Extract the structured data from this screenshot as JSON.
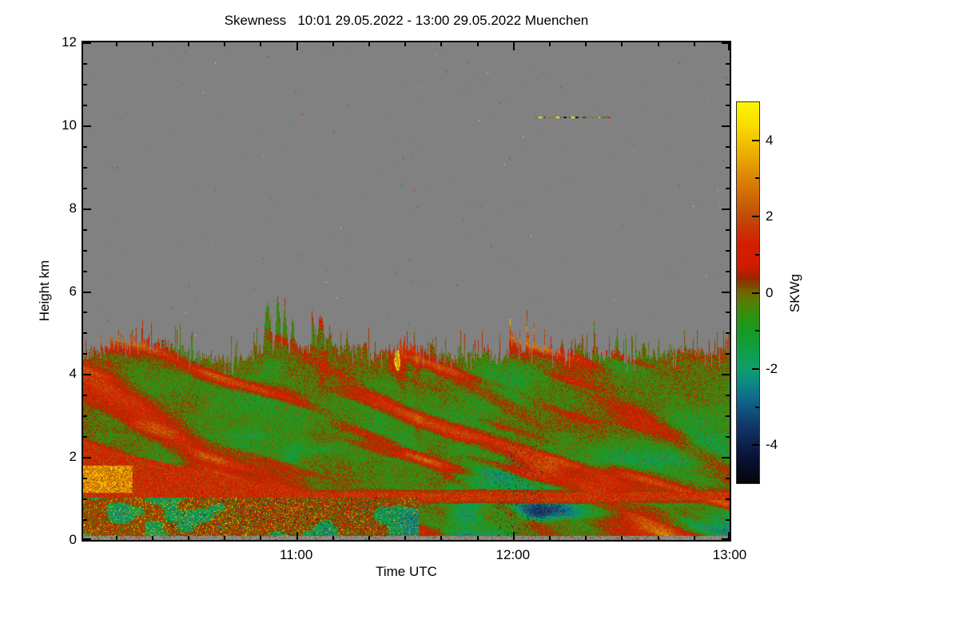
{
  "figure": {
    "title": "Skewness   10:01 29.05.2022 - 13:00 29.05.2022 Muenchen"
  },
  "x_axis": {
    "label": "Time UTC",
    "start_min": 601,
    "end_min": 780,
    "major": [
      {
        "label": "11:00",
        "min": 660
      },
      {
        "label": "12:00",
        "min": 720
      },
      {
        "label": "13:00",
        "min": 780
      }
    ],
    "minor_step_min": 10
  },
  "y_axis": {
    "label": "Height km",
    "min": 0,
    "max": 12,
    "major": [
      12,
      10,
      8,
      6,
      4,
      2,
      0
    ],
    "minor_step": 0.5
  },
  "colorbar": {
    "label": "SKWg",
    "min": -5,
    "max": 5,
    "major": [
      4,
      2,
      0,
      -2,
      -4
    ],
    "minor": [
      3,
      1,
      -1,
      -3
    ]
  },
  "chart_data": {
    "type": "heatmap",
    "title": "Skewness",
    "time_range": "10:01 29.05.2022 - 13:00 29.05.2022",
    "site": "Muenchen",
    "xlabel": "Time UTC",
    "x_ticks": [
      "11:00",
      "12:00",
      "13:00"
    ],
    "ylabel": "Height km",
    "y_ticks": [
      0,
      2,
      4,
      6,
      8,
      10,
      12
    ],
    "value_label": "SKWg",
    "value_range": [
      -5,
      5
    ],
    "colorbar_ticks": [
      4,
      2,
      0,
      -2,
      -4
    ],
    "no_data_color": "#818181",
    "colormap_stops": [
      [
        -5.0,
        "#050507"
      ],
      [
        -4.3,
        "#0a1238"
      ],
      [
        -3.5,
        "#113768"
      ],
      [
        -2.9,
        "#0f5f88"
      ],
      [
        -2.4,
        "#0d8687"
      ],
      [
        -2.0,
        "#0f9e6d"
      ],
      [
        -1.5,
        "#0f9f45"
      ],
      [
        -1.0,
        "#169a24"
      ],
      [
        -0.55,
        "#35900f"
      ],
      [
        -0.2,
        "#567d04"
      ],
      [
        0.0,
        "#6f6a00"
      ],
      [
        0.18,
        "#7d4a00"
      ],
      [
        0.4,
        "#9c2500"
      ],
      [
        0.7,
        "#cf1c00"
      ],
      [
        1.3,
        "#d31f00"
      ],
      [
        2.0,
        "#bf4c08"
      ],
      [
        2.9,
        "#d97d05"
      ],
      [
        3.7,
        "#edb100"
      ],
      [
        4.4,
        "#f9dc00"
      ],
      [
        5.0,
        "#fdf500"
      ]
    ],
    "features": [
      "Turbulent aerosol/boundary layer from 0 km up to a spiky top at ~4.3-4.9 km; tallest convective plumes reach ~5.9 km around 10:55",
      "Uniform gray above the layer top = no data",
      "Thin speckled layer at ~10.2 km between ~12:05 and 12:25",
      "Narrow positive-skewness (red) band near 1 km height running from ~10:55 to 13:00",
      "Strong positive (red with orange/yellow core) patch at 1-2.3 km before ~10:45",
      "Noisy mix of extreme positive (yellow) and negative (dark blue/black) pixels below 1 km, mostly left of 11:00",
      "Elsewhere alternating diagonal streaks of weak positive (red) and negative (green/teal) skewness"
    ],
    "render": {
      "seed": 42,
      "base_top_km": 4.55,
      "plumes": [
        [
          231,
          4,
          5.8
        ],
        [
          243,
          3,
          5.9
        ],
        [
          252,
          3,
          5.6
        ],
        [
          262,
          3,
          5.45
        ],
        [
          287,
          3,
          5.3
        ],
        [
          297,
          4,
          5.5
        ],
        [
          308,
          3,
          5.2
        ],
        [
          330,
          4,
          5.0
        ],
        [
          352,
          4,
          4.95
        ],
        [
          436,
          5,
          4.9
        ],
        [
          470,
          4,
          4.85
        ],
        [
          537,
          6,
          5.15
        ],
        [
          556,
          4,
          5.05
        ],
        [
          598,
          5,
          4.9
        ],
        [
          640,
          5,
          4.85
        ],
        [
          667,
          5,
          4.95
        ],
        [
          700,
          4,
          4.8
        ],
        [
          752,
          5,
          4.75
        ],
        [
          790,
          4,
          4.6
        ]
      ],
      "red_band": {
        "center_km": 1.06,
        "half_width_km": 0.1,
        "x_from": 232
      },
      "left_blob": {
        "x_to": 270,
        "top_km": 2.3,
        "bottom_km": 1.02,
        "slope": 0.0042
      },
      "ground_noise": {
        "x_to": 420,
        "x_dense": 260,
        "top_km": 1.04
      },
      "vertical_streaks": {
        "x_center": 352,
        "x_sigma": 85,
        "km_min": 1.6,
        "km_max": 4.7
      },
      "speckles": {
        "count": 190,
        "colors": [
          "#7c7c10",
          "#7c7c10",
          "#c87800",
          "#c03000",
          "#3f8a10",
          "#1e8c28",
          "#e8c800"
        ]
      },
      "dashed_line": {
        "km": 10.2,
        "x_from": 565,
        "x_to": 659,
        "colors": [
          "#8a7a00",
          "#ffe800",
          "#cc3300",
          "#2a8a1e",
          "#5a3a00",
          "#151515"
        ]
      },
      "bottom_strip_km": 0.105,
      "bottom_strip_color": "#8e8e8e"
    }
  }
}
